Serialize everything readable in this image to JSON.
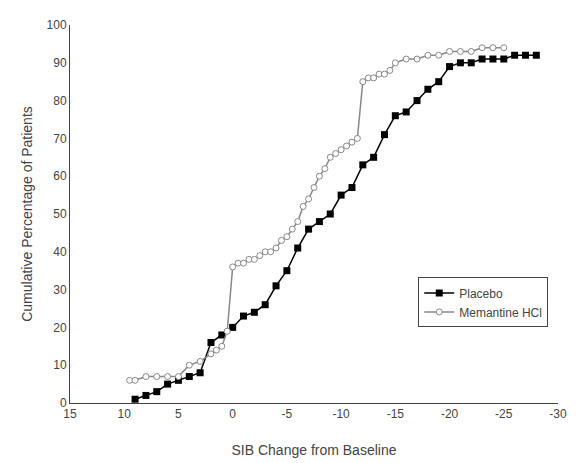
{
  "chart_data": {
    "type": "line",
    "xlabel": "SIB Change from Baseline",
    "ylabel": "Cumulative Percentage of Patients",
    "xlim": [
      15,
      -30
    ],
    "ylim": [
      0,
      100
    ],
    "xticks": [
      15,
      10,
      5,
      0,
      -5,
      -10,
      -15,
      -20,
      -25,
      -30
    ],
    "yticks": [
      0,
      10,
      20,
      30,
      40,
      50,
      60,
      70,
      80,
      90,
      100
    ],
    "grid": false,
    "legend": "lower right",
    "series": [
      {
        "name": "Placebo",
        "color": "#000000",
        "marker": "square",
        "x": [
          9,
          8,
          7,
          6,
          5,
          4,
          3,
          2,
          1,
          0,
          -1,
          -2,
          -3,
          -4,
          -5,
          -6,
          -7,
          -8,
          -9,
          -10,
          -11,
          -12,
          -13,
          -14,
          -15,
          -16,
          -17,
          -18,
          -19,
          -20,
          -21,
          -22,
          -23,
          -24,
          -25,
          -26,
          -27,
          -28
        ],
        "values": [
          1,
          2,
          3,
          5,
          6,
          7,
          8,
          16,
          18,
          20,
          23,
          24,
          26,
          31,
          35,
          41,
          46,
          48,
          50,
          55,
          57,
          63,
          65,
          71,
          76,
          77,
          80,
          83,
          85,
          89,
          90,
          90,
          91,
          91,
          91,
          92,
          92,
          92
        ]
      },
      {
        "name": "Memantine HCl",
        "color": "#888888",
        "marker": "circle",
        "x": [
          9.5,
          9,
          8,
          7,
          6,
          5,
          4,
          3,
          2,
          1.5,
          1,
          0.5,
          0,
          -0.5,
          -1,
          -1.5,
          -2,
          -2.5,
          -3,
          -3.5,
          -4,
          -4.5,
          -5,
          -5.5,
          -6,
          -6.5,
          -7,
          -7.5,
          -8,
          -8.5,
          -9,
          -9.5,
          -10,
          -10.5,
          -11,
          -11.5,
          -12,
          -12.5,
          -13,
          -13.5,
          -14,
          -14.5,
          -15,
          -16,
          -17,
          -18,
          -19,
          -20,
          -21,
          -22,
          -23,
          -24,
          -25
        ],
        "values": [
          6,
          6,
          7,
          7,
          7,
          7,
          10,
          11,
          13,
          14,
          15,
          19,
          36,
          37,
          37,
          38,
          38,
          39,
          40,
          40,
          41,
          43,
          44,
          46,
          48,
          52,
          54,
          57,
          60,
          62,
          65,
          66,
          67,
          68,
          69,
          70,
          85,
          86,
          86,
          87,
          87,
          88,
          90,
          91,
          91,
          92,
          92,
          93,
          93,
          93,
          94,
          94,
          94
        ]
      }
    ]
  }
}
